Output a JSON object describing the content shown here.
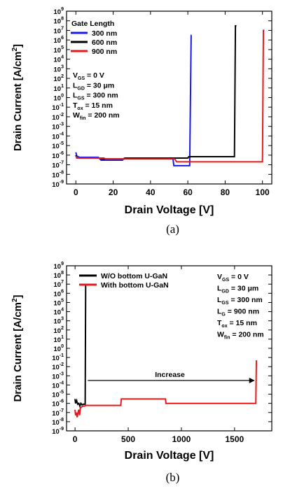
{
  "chart_data": [
    {
      "panel": "(a)",
      "type": "line",
      "xlabel": "Drain Voltage [V]",
      "ylabel": "Drain Current [A/cm²]",
      "xlim": [
        -5,
        105
      ],
      "ylim_exp": [
        -9,
        9
      ],
      "yscale": "log",
      "xticks": [
        "0",
        "20",
        "40",
        "60",
        "80",
        "100"
      ],
      "legend_title": "Gate Length",
      "legend_position": "top-left",
      "params": [
        {
          "text": "V",
          "sub": "GS",
          "rest": " = 0 V"
        },
        {
          "text": "L",
          "sub": "GD",
          "rest": " = 30 μm"
        },
        {
          "text": "L",
          "sub": "GS",
          "rest": " = 300 nm"
        },
        {
          "text": "T",
          "sub": "ox",
          "rest": " = 15 nm"
        },
        {
          "text": "W",
          "sub": "fin",
          "rest": " = 200 nm"
        }
      ],
      "series": [
        {
          "name": "300 nm",
          "color": "#1a1ae6",
          "x": [
            0,
            0.5,
            2,
            12,
            13.5,
            25,
            26,
            52,
            52.5,
            60,
            61,
            61.8,
            62
          ],
          "y": [
            2e-06,
            8e-07,
            6e-07,
            6e-07,
            3e-07,
            3e-07,
            5e-07,
            5e-07,
            8e-08,
            8e-08,
            8e-08,
            3000000.0,
            3000000.0
          ]
        },
        {
          "name": "600 nm",
          "color": "#000000",
          "x": [
            0,
            0.5,
            2,
            13,
            14,
            26,
            27,
            60,
            60.5,
            85,
            85.5,
            86
          ],
          "y": [
            1e-06,
            5e-07,
            5e-07,
            5e-07,
            4e-07,
            4e-07,
            5e-07,
            5e-07,
            7e-07,
            7e-07,
            30000000.0,
            30000000.0
          ]
        },
        {
          "name": "900 nm",
          "color": "#e61a1a",
          "x": [
            0,
            0.5,
            2,
            15,
            16,
            27,
            28,
            53,
            54,
            100,
            100.5,
            101
          ],
          "y": [
            8e-07,
            5e-07,
            5e-07,
            5e-07,
            4e-07,
            4e-07,
            4e-07,
            4e-07,
            2e-07,
            2e-07,
            10000000.0,
            10000000.0
          ]
        }
      ]
    },
    {
      "panel": "(b)",
      "type": "line",
      "xlabel": "Drain Voltage [V]",
      "ylabel": "Drain Current [A/cm²]",
      "xlim": [
        -80,
        1850
      ],
      "ylim_exp": [
        -9,
        9
      ],
      "yscale": "log",
      "xticks": [
        "0",
        "500",
        "1000",
        "1500"
      ],
      "legend_position": "top-left",
      "params": [
        {
          "text": "V",
          "sub": "GS",
          "rest": " = 0 V"
        },
        {
          "text": "L",
          "sub": "GD",
          "rest": " = 30 μm"
        },
        {
          "text": "L",
          "sub": "GS",
          "rest": " = 300 nm"
        },
        {
          "text": "L",
          "sub": "G",
          "rest": " = 900 nm"
        },
        {
          "text": "T",
          "sub": "ox",
          "rest": " = 15 nm"
        },
        {
          "text": "W",
          "sub": "fin",
          "rest": " = 200 nm"
        }
      ],
      "annotation": "Increase",
      "series": [
        {
          "name": "W/O bottom U-GaN",
          "color": "#000000",
          "x": [
            0,
            5,
            15,
            25,
            35,
            45,
            55,
            65,
            80,
            90,
            95,
            100,
            102
          ],
          "y": [
            3e-06,
            1e-06,
            2e-06,
            8e-07,
            1e-06,
            5e-07,
            1e-06,
            7e-07,
            8e-07,
            8e-07,
            8e-07,
            8000000.0,
            8000000.0
          ]
        },
        {
          "name": "With bottom U-GaN",
          "color": "#e61a1a",
          "x": [
            0,
            5,
            12,
            20,
            28,
            35,
            42,
            50,
            60,
            75,
            90,
            100,
            120,
            430,
            435,
            850,
            855,
            1700,
            1705
          ],
          "y": [
            2e-07,
            5e-08,
            1e-07,
            3e-08,
            1e-07,
            2e-07,
            5e-08,
            3e-07,
            4e-07,
            5e-07,
            5e-07,
            6e-07,
            6e-07,
            6e-07,
            3e-06,
            3e-06,
            1e-06,
            1e-06,
            0.05
          ]
        }
      ]
    }
  ],
  "captions": {
    "a": "(a)",
    "b": "(b)"
  }
}
